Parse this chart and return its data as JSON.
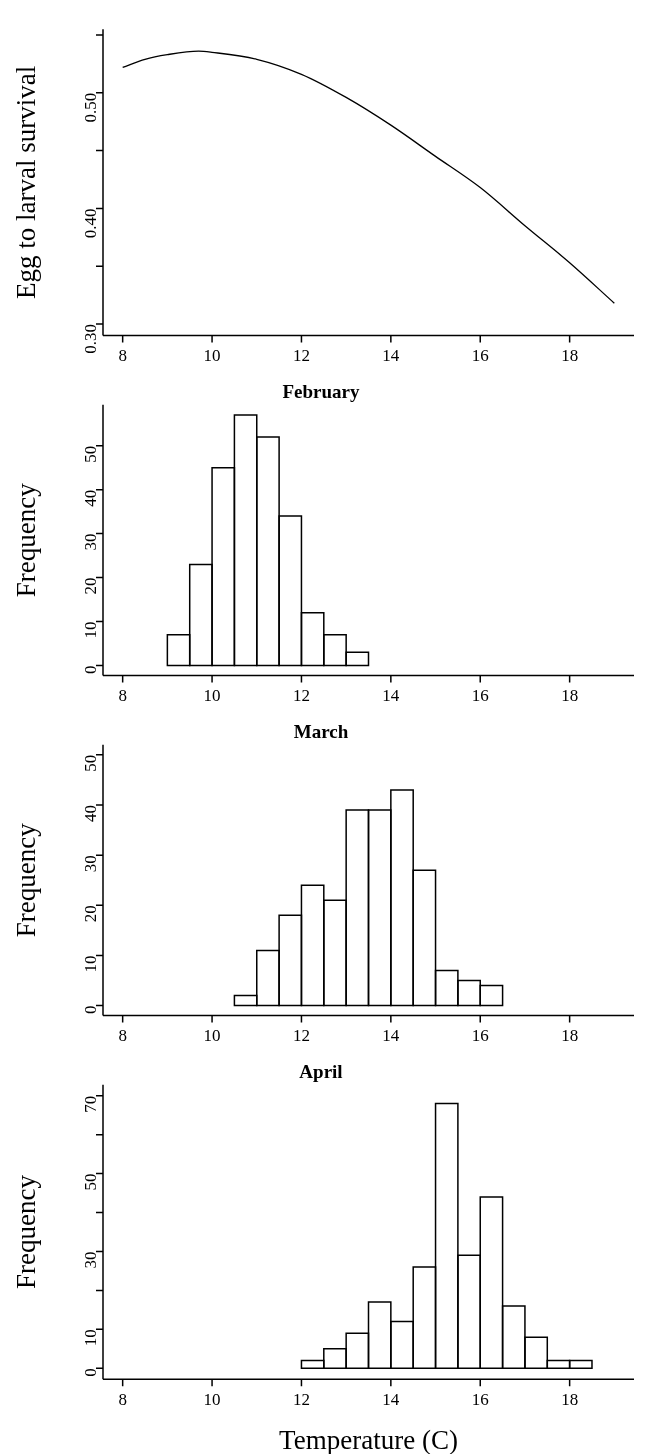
{
  "chart_data": [
    {
      "type": "line",
      "ylabel": "Egg to larval survival",
      "x": [
        8,
        8.5,
        9,
        9.7,
        10,
        11,
        12,
        13,
        14,
        15,
        16,
        17,
        18,
        19
      ],
      "values": [
        0.522,
        0.529,
        0.533,
        0.536,
        0.535,
        0.529,
        0.516,
        0.496,
        0.472,
        0.445,
        0.418,
        0.385,
        0.353,
        0.318
      ],
      "color": "#000000",
      "xlim": [
        7.56,
        19.44
      ],
      "xticks": [
        8,
        10,
        12,
        14,
        16,
        18
      ],
      "ylim": [
        0.29,
        0.555
      ],
      "yticks": [
        {
          "value": 0.3,
          "label": "0.30"
        },
        {
          "value": 0.35,
          "label": null
        },
        {
          "value": 0.4,
          "label": "0.40"
        },
        {
          "value": 0.45,
          "label": null
        },
        {
          "value": 0.5,
          "label": "0.50"
        },
        {
          "value": 0.55,
          "label": null
        }
      ]
    },
    {
      "type": "histogram",
      "title": "February",
      "ylabel": "Frequency",
      "bins": [
        9,
        9.5,
        10,
        10.5,
        11,
        11.5,
        12,
        12.5,
        13,
        13.5
      ],
      "values": [
        7,
        23,
        45,
        57,
        52,
        34,
        12,
        7,
        3
      ],
      "color": "#ffffff",
      "xlim": [
        7.56,
        19.44
      ],
      "xticks": [
        8,
        10,
        12,
        14,
        16,
        18
      ],
      "ylim": [
        -2.3,
        59.3
      ],
      "yticks": [
        0,
        10,
        20,
        30,
        40,
        50
      ]
    },
    {
      "type": "histogram",
      "title": "March",
      "ylabel": "Frequency",
      "bins": [
        10.5,
        11,
        11.5,
        12,
        12.5,
        13,
        13.5,
        14,
        14.5,
        15,
        15.5,
        16,
        16.5
      ],
      "values": [
        2,
        11,
        18,
        24,
        21,
        39,
        39,
        43,
        27,
        7,
        5,
        4
      ],
      "color": "#ffffff",
      "xlim": [
        7.56,
        19.44
      ],
      "xticks": [
        8,
        10,
        12,
        14,
        16,
        18
      ],
      "ylim": [
        -2,
        52
      ],
      "yticks": [
        0,
        10,
        20,
        30,
        40,
        50
      ]
    },
    {
      "type": "histogram",
      "title": "April",
      "ylabel": "Frequency",
      "xlabel": "Temperature (C)",
      "bins": [
        12,
        12.5,
        13,
        13.5,
        14,
        14.5,
        15,
        15.5,
        16,
        16.5,
        17,
        17.5,
        18,
        18.5
      ],
      "values": [
        2,
        5,
        9,
        17,
        12,
        26,
        68,
        29,
        44,
        16,
        8,
        2,
        2
      ],
      "color": "#ffffff",
      "xlim": [
        7.56,
        19.44
      ],
      "xticks": [
        8,
        10,
        12,
        14,
        16,
        18
      ],
      "ylim": [
        -2.8,
        72.8
      ],
      "yticks": [
        0,
        10,
        {
          "value": 20,
          "label": null
        },
        30,
        {
          "value": 40,
          "label": null
        },
        50,
        {
          "value": 60,
          "label": null
        },
        70
      ]
    }
  ]
}
